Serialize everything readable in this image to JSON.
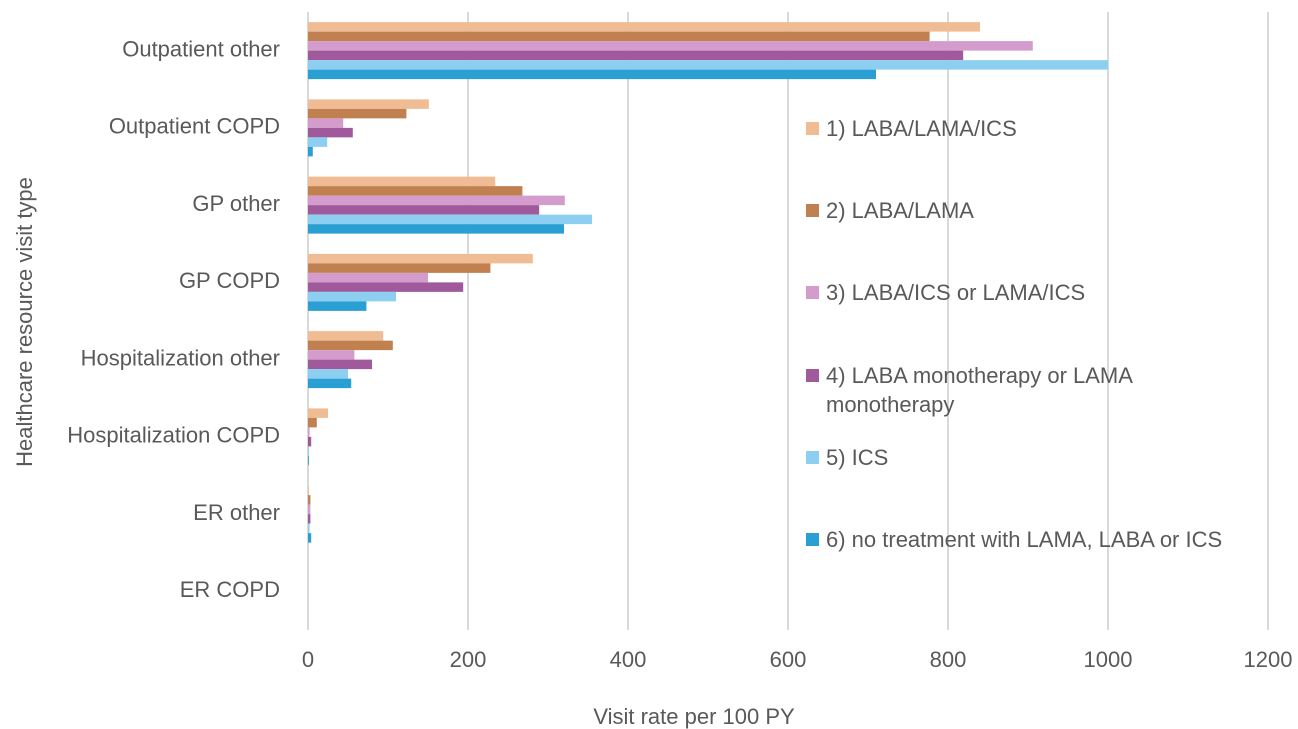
{
  "chart_data": {
    "type": "hbar",
    "x_label": "Visit rate per 100 PY",
    "y_label": "Healthcare resource visit type",
    "categories": [
      "Outpatient other",
      "Outpatient COPD",
      "GP other",
      "GP COPD",
      "Hospitalization other",
      "Hospitalization COPD",
      "ER other",
      "ER COPD"
    ],
    "series": [
      {
        "name": "1) LABA/LAMA/ICS",
        "color": "#f0bc94",
        "values": [
          840,
          151,
          234,
          281,
          94,
          25,
          1,
          0
        ]
      },
      {
        "name": "2) LABA/LAMA",
        "color": "#c0804f",
        "values": [
          777,
          123,
          268,
          228,
          106,
          11,
          3,
          0
        ]
      },
      {
        "name": "3) LABA/ICS or LAMA/ICS",
        "color": "#d49ccc",
        "values": [
          906,
          44,
          321,
          150,
          58,
          2,
          3,
          0
        ]
      },
      {
        "name": "4) LABA monotherapy or LAMA monotherapy",
        "color": "#a05a9c",
        "values": [
          819,
          56,
          289,
          194,
          80,
          4,
          3,
          0
        ]
      },
      {
        "name": "5) ICS",
        "color": "#8ccff0",
        "values": [
          1000,
          24,
          355,
          110,
          50,
          1,
          2,
          0
        ]
      },
      {
        "name": "6) no treatment with LAMA, LABA or ICS",
        "color": "#2a9fd4",
        "values": [
          710,
          6,
          320,
          73,
          54,
          1,
          4,
          0
        ]
      }
    ],
    "xlim": [
      0,
      1200
    ],
    "xticks": [
      0,
      200,
      400,
      600,
      800,
      1000,
      1200
    ],
    "grid": true,
    "legend": "right"
  }
}
